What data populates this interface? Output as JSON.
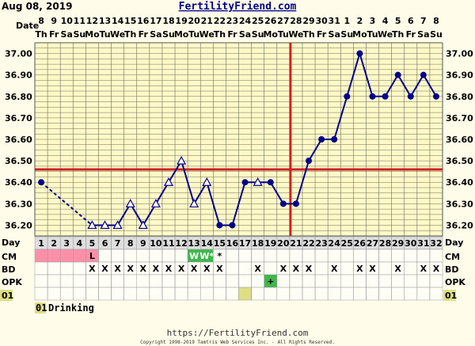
{
  "header": {
    "date": "Aug 08, 2019",
    "site": "FertilityFriend.com"
  },
  "row_labels": {
    "date": "Date",
    "day": "Day",
    "cm": "CM",
    "bd": "BD",
    "opk": "OPK",
    "custom": "01"
  },
  "chart_data": {
    "type": "line",
    "title": "",
    "xlabel": "",
    "ylabel": "",
    "ylim": [
      36.15,
      37.05
    ],
    "yticks": [
      "37.00",
      "36.90",
      "36.80",
      "36.70",
      "36.60",
      "36.50",
      "36.40",
      "36.30",
      "36.20"
    ],
    "grid": true,
    "dates": [
      "8",
      "9",
      "10",
      "11",
      "12",
      "13",
      "14",
      "15",
      "16",
      "17",
      "18",
      "19",
      "20",
      "21",
      "22",
      "23",
      "24",
      "25",
      "26",
      "27",
      "28",
      "29",
      "30",
      "31",
      "1",
      "2",
      "3",
      "4",
      "5",
      "6",
      "7",
      "8"
    ],
    "weekdays": [
      "Th",
      "Fr",
      "Sa",
      "Su",
      "Mo",
      "Tu",
      "We",
      "Th",
      "Fr",
      "Sa",
      "Su",
      "Mo",
      "Tu",
      "We",
      "Th",
      "Fr",
      "Sa",
      "Su",
      "Mo",
      "Tu",
      "We",
      "Th",
      "Fr",
      "Sa",
      "Su",
      "Mo",
      "Tu",
      "We",
      "Th",
      "Fr",
      "Sa",
      "Su"
    ],
    "days": [
      "1",
      "2",
      "3",
      "4",
      "5",
      "6",
      "7",
      "8",
      "9",
      "10",
      "11",
      "12",
      "13",
      "14",
      "15",
      "16",
      "17",
      "18",
      "19",
      "20",
      "21",
      "22",
      "23",
      "24",
      "25",
      "26",
      "27",
      "28",
      "29",
      "30",
      "31",
      "32"
    ],
    "temps": [
      36.4,
      null,
      null,
      null,
      36.2,
      36.2,
      36.2,
      36.3,
      36.2,
      36.3,
      36.4,
      36.5,
      36.3,
      36.4,
      36.2,
      36.2,
      36.4,
      36.4,
      36.4,
      36.3,
      36.3,
      36.5,
      36.6,
      36.6,
      36.8,
      37.0,
      36.8,
      36.8,
      36.9,
      36.8,
      36.9,
      36.8
    ],
    "markers": [
      "circle",
      "",
      "",
      "",
      "triangle",
      "triangle",
      "triangle",
      "triangle",
      "triangle",
      "triangle",
      "triangle",
      "triangle",
      "triangle",
      "triangle",
      "circle",
      "circle",
      "circle",
      "triangle",
      "circle",
      "circle",
      "circle",
      "circle",
      "circle",
      "circle",
      "circle",
      "circle",
      "circle",
      "circle",
      "circle",
      "circle",
      "circle",
      "circle"
    ],
    "coverline": 36.46,
    "ovulation_day": "21",
    "cm": [
      "",
      "",
      "",
      "",
      "L",
      "",
      "",
      "",
      "",
      "",
      "",
      "",
      "W",
      "W*",
      "*",
      "",
      "",
      "",
      "",
      "",
      "",
      "",
      "",
      "",
      "",
      "",
      "",
      "",
      "",
      "",
      "",
      ""
    ],
    "cm_highlight": [
      "pink",
      "pink",
      "pink",
      "pink",
      "pink",
      "",
      "",
      "",
      "",
      "",
      "",
      "",
      "green",
      "green",
      "",
      "",
      "",
      "",
      "",
      "",
      "",
      "",
      "",
      "",
      "",
      "",
      "",
      "",
      "",
      "",
      "",
      ""
    ],
    "bd": [
      "",
      "",
      "",
      "",
      "X",
      "X",
      "X",
      "X",
      "X",
      "X",
      "X",
      "X",
      "X",
      "X",
      "X",
      "",
      "",
      "X",
      "",
      "X",
      "X",
      "X",
      "",
      "X",
      "",
      "X",
      "X",
      "",
      "X",
      "",
      "X",
      "X"
    ],
    "opk": [
      "",
      "",
      "",
      "",
      "",
      "",
      "",
      "",
      "",
      "",
      "",
      "",
      "",
      "",
      "",
      "",
      "",
      "",
      "+",
      "",
      "",
      "",
      "",
      "",
      "",
      "",
      "",
      "",
      "",
      "",
      "",
      ""
    ],
    "custom01": [
      "",
      "",
      "",
      "",
      "",
      "",
      "",
      "",
      "",
      "",
      "",
      "",
      "",
      "",
      "",
      "",
      "y",
      "",
      "",
      "",
      "",
      "",
      "",
      "",
      "",
      "",
      "",
      "",
      "",
      "",
      "",
      ""
    ],
    "colors": {
      "line": "#00008b",
      "coverline": "#cc2222",
      "grid": "#6e6e58",
      "plot_bg": "#fff9c8",
      "day_row_bg": "#dedede",
      "pink": "#ff8fa8",
      "green": "#3cb84a",
      "olive": "#dede86"
    }
  },
  "notes": [
    {
      "code": "01",
      "text": "Drinking"
    }
  ],
  "footer": {
    "url": "https://FertilityFriend.com",
    "copyright": "Copyright 1998-2019 Tamtris Web Services Inc. - All Rights Reserved."
  }
}
